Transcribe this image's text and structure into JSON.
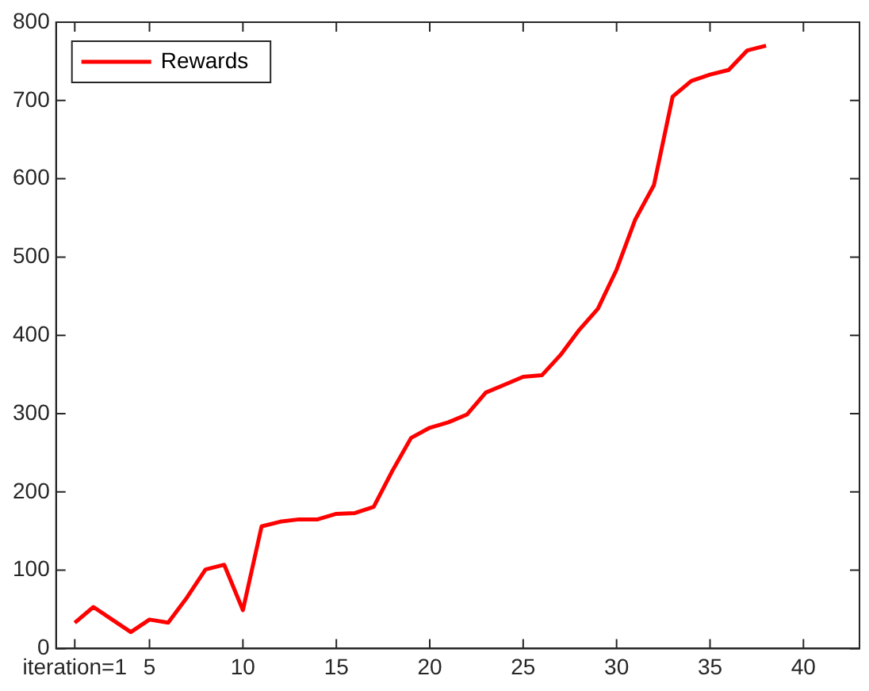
{
  "chart_data": {
    "type": "line",
    "x": [
      1,
      2,
      3,
      4,
      5,
      6,
      7,
      8,
      9,
      10,
      11,
      12,
      13,
      14,
      15,
      16,
      17,
      18,
      19,
      20,
      21,
      22,
      23,
      24,
      25,
      26,
      27,
      28,
      29,
      30,
      31,
      32,
      33,
      34,
      35,
      36,
      37,
      38
    ],
    "series": [
      {
        "name": "Rewards",
        "color": "#ff0000",
        "values": [
          33,
          53,
          37,
          21,
          37,
          33,
          65,
          101,
          107,
          49,
          156,
          162,
          165,
          165,
          172,
          173,
          181,
          227,
          269,
          282,
          289,
          299,
          327,
          337,
          347,
          349,
          375,
          407,
          434,
          484,
          548,
          592,
          705,
          725,
          733,
          739,
          764,
          770
        ]
      }
    ],
    "xlim": [
      0,
      43
    ],
    "xticks": [
      {
        "value": 1,
        "label": "iteration=1"
      },
      5,
      10,
      15,
      20,
      25,
      30,
      35,
      40
    ],
    "ylim": [
      0,
      800
    ],
    "yticks": [
      0,
      100,
      200,
      300,
      400,
      500,
      600,
      700,
      800
    ],
    "grid": false,
    "legend": "top left",
    "marker": "none",
    "line_style": "solid"
  }
}
